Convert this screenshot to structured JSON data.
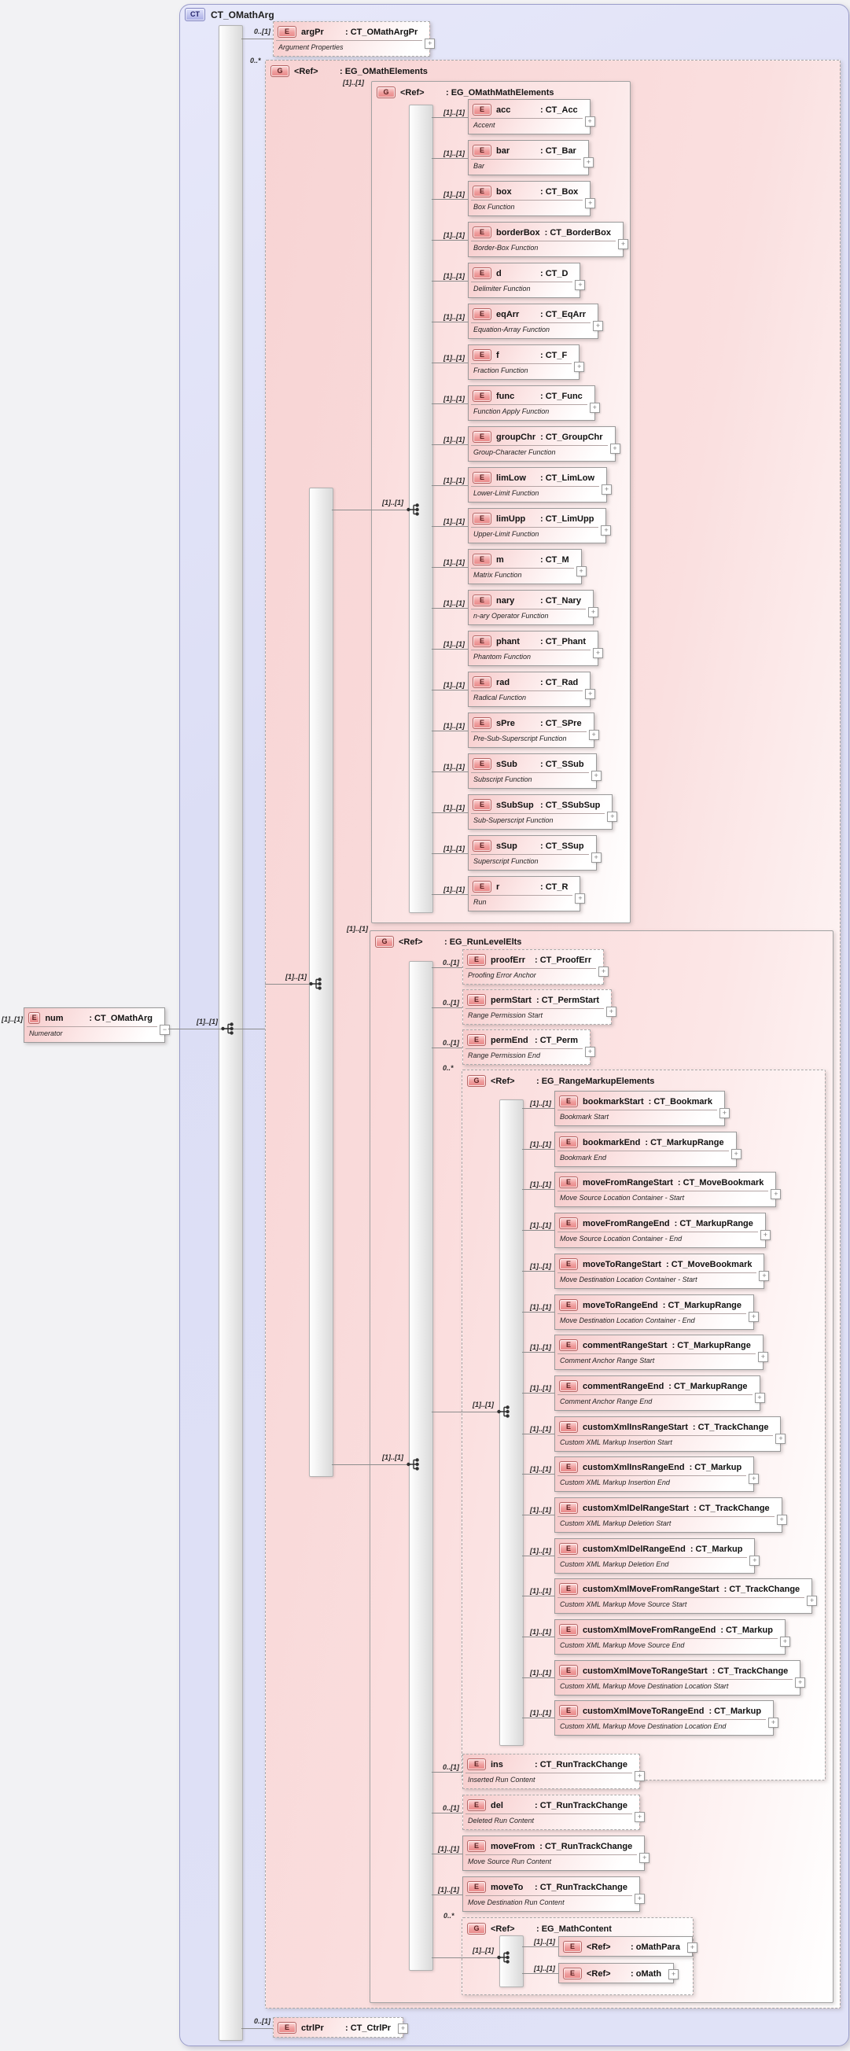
{
  "icons": {
    "expand": "+",
    "collapse": "−",
    "compositor": "sequence-branch"
  },
  "root": {
    "badge": "CT",
    "title": "CT_OMathArg"
  },
  "num_element": {
    "cardinality": "[1]..[1]",
    "badge": "E",
    "name": "num",
    "type": ": CT_OMathArg",
    "annotation": "Numerator"
  },
  "sequence": {
    "cardinality": "[1]..[1]"
  },
  "argPr": {
    "cardinality": "0..[1]",
    "badge": "E",
    "name": "argPr",
    "type": ": CT_OMathArgPr",
    "annotation": "Argument Properties"
  },
  "ctrlPr": {
    "cardinality": "0..[1]",
    "badge": "E",
    "name": "ctrlPr",
    "type": ": CT_CtrlPr"
  },
  "groups": {
    "omath_elements": {
      "cardinality": "0..*",
      "badge": "G",
      "ref": "<Ref>",
      "type": ": EG_OMathElements",
      "compositor_cardinality": "[1]..[1]"
    },
    "omath_math_elements": {
      "cardinality": "[1]..[1]",
      "badge": "G",
      "ref": "<Ref>",
      "type": ": EG_OMathMathElements",
      "compositor_cardinality": "[1]..[1]",
      "elements": [
        {
          "cardinality": "[1]..[1]",
          "badge": "E",
          "name": "acc",
          "type": ": CT_Acc",
          "annotation": "Accent"
        },
        {
          "cardinality": "[1]..[1]",
          "badge": "E",
          "name": "bar",
          "type": ": CT_Bar",
          "annotation": "Bar"
        },
        {
          "cardinality": "[1]..[1]",
          "badge": "E",
          "name": "box",
          "type": ": CT_Box",
          "annotation": "Box Function"
        },
        {
          "cardinality": "[1]..[1]",
          "badge": "E",
          "name": "borderBox",
          "type": ": CT_BorderBox",
          "annotation": "Border-Box Function"
        },
        {
          "cardinality": "[1]..[1]",
          "badge": "E",
          "name": "d",
          "type": ": CT_D",
          "annotation": "Delimiter Function"
        },
        {
          "cardinality": "[1]..[1]",
          "badge": "E",
          "name": "eqArr",
          "type": ": CT_EqArr",
          "annotation": "Equation-Array Function"
        },
        {
          "cardinality": "[1]..[1]",
          "badge": "E",
          "name": "f",
          "type": ": CT_F",
          "annotation": "Fraction Function"
        },
        {
          "cardinality": "[1]..[1]",
          "badge": "E",
          "name": "func",
          "type": ": CT_Func",
          "annotation": "Function Apply Function"
        },
        {
          "cardinality": "[1]..[1]",
          "badge": "E",
          "name": "groupChr",
          "type": ": CT_GroupChr",
          "annotation": "Group-Character Function"
        },
        {
          "cardinality": "[1]..[1]",
          "badge": "E",
          "name": "limLow",
          "type": ": CT_LimLow",
          "annotation": "Lower-Limit Function"
        },
        {
          "cardinality": "[1]..[1]",
          "badge": "E",
          "name": "limUpp",
          "type": ": CT_LimUpp",
          "annotation": "Upper-Limit Function"
        },
        {
          "cardinality": "[1]..[1]",
          "badge": "E",
          "name": "m",
          "type": ": CT_M",
          "annotation": "Matrix Function"
        },
        {
          "cardinality": "[1]..[1]",
          "badge": "E",
          "name": "nary",
          "type": ": CT_Nary",
          "annotation": "n-ary Operator Function"
        },
        {
          "cardinality": "[1]..[1]",
          "badge": "E",
          "name": "phant",
          "type": ": CT_Phant",
          "annotation": "Phantom Function"
        },
        {
          "cardinality": "[1]..[1]",
          "badge": "E",
          "name": "rad",
          "type": ": CT_Rad",
          "annotation": "Radical Function"
        },
        {
          "cardinality": "[1]..[1]",
          "badge": "E",
          "name": "sPre",
          "type": ": CT_SPre",
          "annotation": "Pre-Sub-Superscript Function"
        },
        {
          "cardinality": "[1]..[1]",
          "badge": "E",
          "name": "sSub",
          "type": ": CT_SSub",
          "annotation": "Subscript Function"
        },
        {
          "cardinality": "[1]..[1]",
          "badge": "E",
          "name": "sSubSup",
          "type": ": CT_SSubSup",
          "annotation": "Sub-Superscript Function"
        },
        {
          "cardinality": "[1]..[1]",
          "badge": "E",
          "name": "sSup",
          "type": ": CT_SSup",
          "annotation": "Superscript Function"
        },
        {
          "cardinality": "[1]..[1]",
          "badge": "E",
          "name": "r",
          "type": ": CT_R",
          "annotation": "Run"
        }
      ]
    },
    "run_level_elts": {
      "cardinality": "[1]..[1]",
      "badge": "G",
      "ref": "<Ref>",
      "type": ": EG_RunLevelElts",
      "compositor_cardinality": "[1]..[1]",
      "pre_elements": [
        {
          "cardinality": "0..[1]",
          "badge": "E",
          "name": "proofErr",
          "type": ": CT_ProofErr",
          "annotation": "Proofing Error Anchor"
        },
        {
          "cardinality": "0..[1]",
          "badge": "E",
          "name": "permStart",
          "type": ": CT_PermStart",
          "annotation": "Range Permission Start"
        },
        {
          "cardinality": "0..[1]",
          "badge": "E",
          "name": "permEnd",
          "type": ": CT_Perm",
          "annotation": "Range Permission End"
        }
      ],
      "post_elements": [
        {
          "cardinality": "0..[1]",
          "badge": "E",
          "name": "ins",
          "type": ": CT_RunTrackChange",
          "annotation": "Inserted Run Content"
        },
        {
          "cardinality": "0..[1]",
          "badge": "E",
          "name": "del",
          "type": ": CT_RunTrackChange",
          "annotation": "Deleted Run Content"
        },
        {
          "cardinality": "[1]..[1]",
          "badge": "E",
          "name": "moveFrom",
          "type": ": CT_RunTrackChange",
          "annotation": "Move Source Run Content"
        },
        {
          "cardinality": "[1]..[1]",
          "badge": "E",
          "name": "moveTo",
          "type": ": CT_RunTrackChange",
          "annotation": "Move Destination Run Content"
        }
      ]
    },
    "range_markup_elements": {
      "cardinality": "0..*",
      "badge": "G",
      "ref": "<Ref>",
      "type": ": EG_RangeMarkupElements",
      "compositor_cardinality": "[1]..[1]",
      "elements": [
        {
          "cardinality": "[1]..[1]",
          "badge": "E",
          "name": "bookmarkStart",
          "type": ": CT_Bookmark",
          "annotation": "Bookmark Start"
        },
        {
          "cardinality": "[1]..[1]",
          "badge": "E",
          "name": "bookmarkEnd",
          "type": ": CT_MarkupRange",
          "annotation": "Bookmark End"
        },
        {
          "cardinality": "[1]..[1]",
          "badge": "E",
          "name": "moveFromRangeStart",
          "type": ": CT_MoveBookmark",
          "annotation": "Move Source Location Container - Start"
        },
        {
          "cardinality": "[1]..[1]",
          "badge": "E",
          "name": "moveFromRangeEnd",
          "type": ": CT_MarkupRange",
          "annotation": "Move Source Location Container - End"
        },
        {
          "cardinality": "[1]..[1]",
          "badge": "E",
          "name": "moveToRangeStart",
          "type": ": CT_MoveBookmark",
          "annotation": "Move Destination Location Container - Start"
        },
        {
          "cardinality": "[1]..[1]",
          "badge": "E",
          "name": "moveToRangeEnd",
          "type": ": CT_MarkupRange",
          "annotation": "Move Destination Location Container - End"
        },
        {
          "cardinality": "[1]..[1]",
          "badge": "E",
          "name": "commentRangeStart",
          "type": ": CT_MarkupRange",
          "annotation": "Comment Anchor Range Start"
        },
        {
          "cardinality": "[1]..[1]",
          "badge": "E",
          "name": "commentRangeEnd",
          "type": ": CT_MarkupRange",
          "annotation": "Comment Anchor Range End"
        },
        {
          "cardinality": "[1]..[1]",
          "badge": "E",
          "name": "customXmlInsRangeStart",
          "type": ": CT_TrackChange",
          "annotation": "Custom XML Markup Insertion Start"
        },
        {
          "cardinality": "[1]..[1]",
          "badge": "E",
          "name": "customXmlInsRangeEnd",
          "type": ": CT_Markup",
          "annotation": "Custom XML Markup Insertion End"
        },
        {
          "cardinality": "[1]..[1]",
          "badge": "E",
          "name": "customXmlDelRangeStart",
          "type": ": CT_TrackChange",
          "annotation": "Custom XML Markup Deletion Start"
        },
        {
          "cardinality": "[1]..[1]",
          "badge": "E",
          "name": "customXmlDelRangeEnd",
          "type": ": CT_Markup",
          "annotation": "Custom XML Markup Deletion End"
        },
        {
          "cardinality": "[1]..[1]",
          "badge": "E",
          "name": "customXmlMoveFromRangeStart",
          "type": ": CT_TrackChange",
          "annotation": "Custom XML Markup Move Source Start"
        },
        {
          "cardinality": "[1]..[1]",
          "badge": "E",
          "name": "customXmlMoveFromRangeEnd",
          "type": ": CT_Markup",
          "annotation": "Custom XML Markup Move Source End"
        },
        {
          "cardinality": "[1]..[1]",
          "badge": "E",
          "name": "customXmlMoveToRangeStart",
          "type": ": CT_TrackChange",
          "annotation": "Custom XML Markup Move Destination Location Start"
        },
        {
          "cardinality": "[1]..[1]",
          "badge": "E",
          "name": "customXmlMoveToRangeEnd",
          "type": ": CT_Markup",
          "annotation": "Custom XML Markup Move Destination Location End"
        }
      ]
    },
    "math_content": {
      "cardinality": "0..*",
      "badge": "G",
      "ref": "<Ref>",
      "type": ": EG_MathContent",
      "compositor_cardinality": "[1]..[1]",
      "elements": [
        {
          "cardinality": "[1]..[1]",
          "badge": "E",
          "name": "<Ref>",
          "type": ": oMathPara"
        },
        {
          "cardinality": "[1]..[1]",
          "badge": "E",
          "name": "<Ref>",
          "type": ": oMath"
        }
      ]
    }
  }
}
